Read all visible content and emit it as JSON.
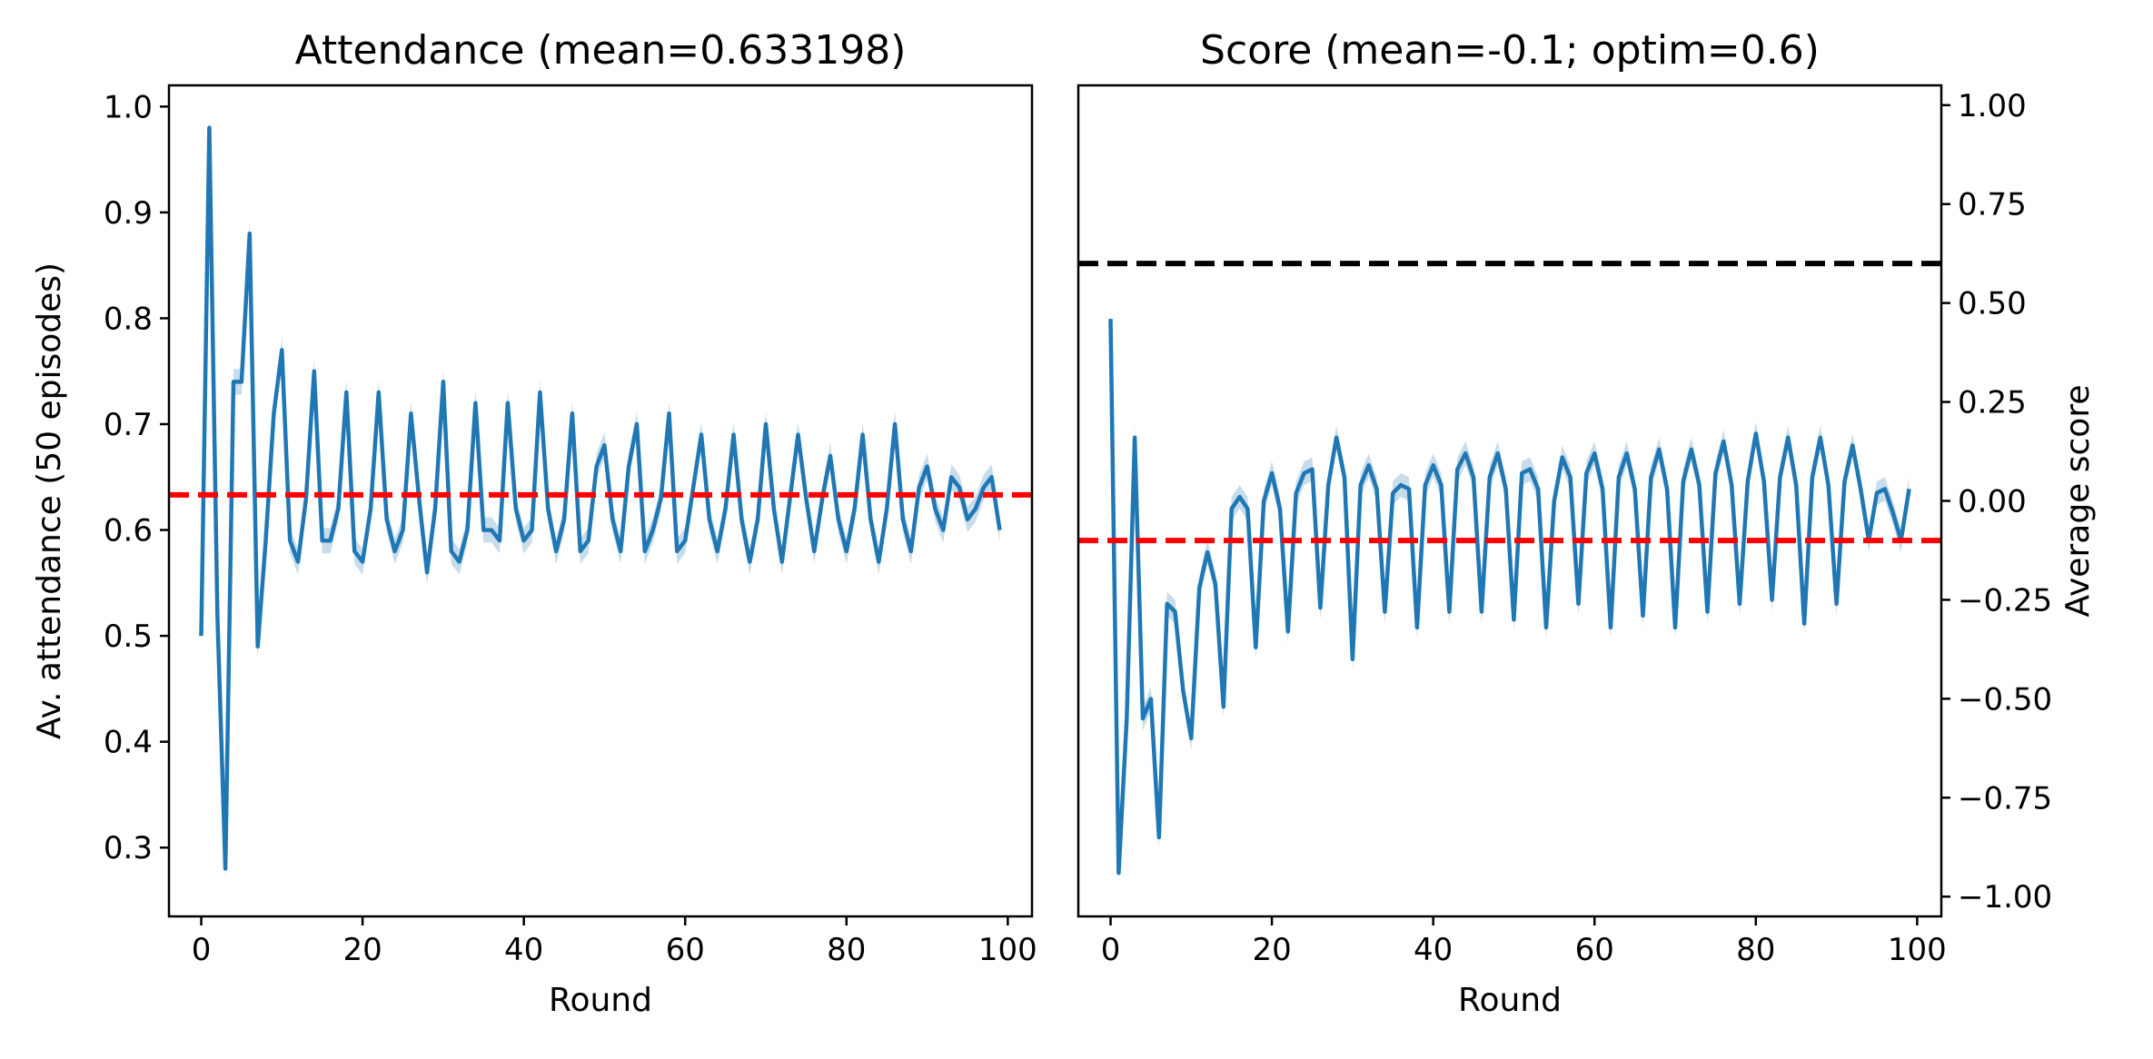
{
  "chart_data": [
    {
      "type": "line",
      "title": "Attendance (mean=0.633198)",
      "xlabel": "Round",
      "ylabel": "Av. attendance (50 episodes)",
      "xlim": [
        -4,
        103
      ],
      "ylim": [
        0.235,
        1.02
      ],
      "xticks": [
        0,
        20,
        40,
        60,
        80,
        100
      ],
      "yticks": [
        0.3,
        0.4,
        0.5,
        0.6,
        0.7,
        0.8,
        0.9,
        1.0
      ],
      "ytick_labels": [
        "0.3",
        "0.4",
        "0.5",
        "0.6",
        "0.7",
        "0.8",
        "0.9",
        "1.0"
      ],
      "y_axis_side": "left",
      "grid": false,
      "band_halfwidth": 0.012,
      "series": [
        {
          "color": "#1f77b4",
          "x": [
            0,
            1,
            2,
            3,
            4,
            5,
            6,
            7,
            8,
            9,
            10,
            11,
            12,
            13,
            14,
            15,
            16,
            17,
            18,
            19,
            20,
            21,
            22,
            23,
            24,
            25,
            26,
            27,
            28,
            29,
            30,
            31,
            32,
            33,
            34,
            35,
            36,
            37,
            38,
            39,
            40,
            41,
            42,
            43,
            44,
            45,
            46,
            47,
            48,
            49,
            50,
            51,
            52,
            53,
            54,
            55,
            56,
            57,
            58,
            59,
            60,
            61,
            62,
            63,
            64,
            65,
            66,
            67,
            68,
            69,
            70,
            71,
            72,
            73,
            74,
            75,
            76,
            77,
            78,
            79,
            80,
            81,
            82,
            83,
            84,
            85,
            86,
            87,
            88,
            89,
            90,
            91,
            92,
            93,
            94,
            95,
            96,
            97,
            98,
            99
          ],
          "y": [
            0.5,
            0.98,
            0.52,
            0.28,
            0.74,
            0.74,
            0.88,
            0.49,
            0.59,
            0.71,
            0.77,
            0.59,
            0.57,
            0.63,
            0.75,
            0.59,
            0.59,
            0.62,
            0.73,
            0.58,
            0.57,
            0.62,
            0.73,
            0.61,
            0.58,
            0.6,
            0.71,
            0.63,
            0.56,
            0.62,
            0.74,
            0.58,
            0.57,
            0.6,
            0.72,
            0.6,
            0.6,
            0.59,
            0.72,
            0.62,
            0.59,
            0.6,
            0.73,
            0.62,
            0.58,
            0.61,
            0.71,
            0.58,
            0.59,
            0.66,
            0.68,
            0.61,
            0.58,
            0.66,
            0.7,
            0.58,
            0.6,
            0.63,
            0.71,
            0.58,
            0.59,
            0.64,
            0.69,
            0.61,
            0.58,
            0.62,
            0.69,
            0.61,
            0.57,
            0.61,
            0.7,
            0.62,
            0.57,
            0.63,
            0.69,
            0.63,
            0.58,
            0.63,
            0.67,
            0.61,
            0.58,
            0.62,
            0.69,
            0.61,
            0.57,
            0.62,
            0.7,
            0.61,
            0.58,
            0.64,
            0.66,
            0.62,
            0.6,
            0.65,
            0.64,
            0.61,
            0.62,
            0.64,
            0.65,
            0.6
          ]
        }
      ],
      "hlines": [
        {
          "y": 0.633198,
          "color": "#ff0000",
          "style": "dashed"
        }
      ]
    },
    {
      "type": "line",
      "title": "Score (mean=-0.1; optim=0.6)",
      "xlabel": "Round",
      "ylabel": "Average score",
      "xlim": [
        -4,
        103
      ],
      "ylim": [
        -1.05,
        1.05
      ],
      "xticks": [
        0,
        20,
        40,
        60,
        80,
        100
      ],
      "yticks": [
        -1.0,
        -0.75,
        -0.5,
        -0.25,
        0.0,
        0.25,
        0.5,
        0.75,
        1.0
      ],
      "ytick_labels": [
        "−1.00",
        "−0.75",
        "−0.50",
        "−0.25",
        "0.00",
        "0.25",
        "0.50",
        "0.75",
        "1.00"
      ],
      "y_axis_side": "right",
      "grid": false,
      "band_halfwidth": 0.03,
      "series": [
        {
          "color": "#1f77b4",
          "x": [
            0,
            1,
            2,
            3,
            4,
            5,
            6,
            7,
            8,
            9,
            10,
            11,
            12,
            13,
            14,
            15,
            16,
            17,
            18,
            19,
            20,
            21,
            22,
            23,
            24,
            25,
            26,
            27,
            28,
            29,
            30,
            31,
            32,
            33,
            34,
            35,
            36,
            37,
            38,
            39,
            40,
            41,
            42,
            43,
            44,
            45,
            46,
            47,
            48,
            49,
            50,
            51,
            52,
            53,
            54,
            55,
            56,
            57,
            58,
            59,
            60,
            61,
            62,
            63,
            64,
            65,
            66,
            67,
            68,
            69,
            70,
            71,
            72,
            73,
            74,
            75,
            76,
            77,
            78,
            79,
            80,
            81,
            82,
            83,
            84,
            85,
            86,
            87,
            88,
            89,
            90,
            91,
            92,
            93,
            94,
            95,
            96,
            97,
            98,
            99
          ],
          "y": [
            0.46,
            -0.94,
            -0.55,
            0.16,
            -0.55,
            -0.5,
            -0.85,
            -0.26,
            -0.28,
            -0.48,
            -0.6,
            -0.22,
            -0.13,
            -0.21,
            -0.52,
            -0.02,
            0.01,
            -0.02,
            -0.37,
            0.0,
            0.07,
            -0.02,
            -0.33,
            0.02,
            0.07,
            0.08,
            -0.27,
            0.04,
            0.16,
            0.06,
            -0.4,
            0.04,
            0.09,
            0.03,
            -0.28,
            0.02,
            0.04,
            0.03,
            -0.32,
            0.04,
            0.09,
            0.04,
            -0.28,
            0.08,
            0.12,
            0.06,
            -0.28,
            0.06,
            0.12,
            0.03,
            -0.3,
            0.07,
            0.08,
            0.03,
            -0.32,
            0.0,
            0.11,
            0.06,
            -0.26,
            0.07,
            0.12,
            0.03,
            -0.32,
            0.06,
            0.12,
            0.03,
            -0.29,
            0.06,
            0.13,
            0.03,
            -0.32,
            0.05,
            0.13,
            0.04,
            -0.28,
            0.07,
            0.15,
            0.04,
            -0.26,
            0.05,
            0.17,
            0.05,
            -0.25,
            0.06,
            0.16,
            0.04,
            -0.31,
            0.06,
            0.16,
            0.04,
            -0.26,
            0.05,
            0.14,
            0.03,
            -0.1,
            0.02,
            0.03,
            -0.03,
            -0.1,
            0.03
          ]
        }
      ],
      "hlines": [
        {
          "y": 0.6,
          "color": "#000000",
          "style": "dashed"
        },
        {
          "y": -0.1,
          "color": "#ff0000",
          "style": "dashed"
        }
      ]
    }
  ]
}
